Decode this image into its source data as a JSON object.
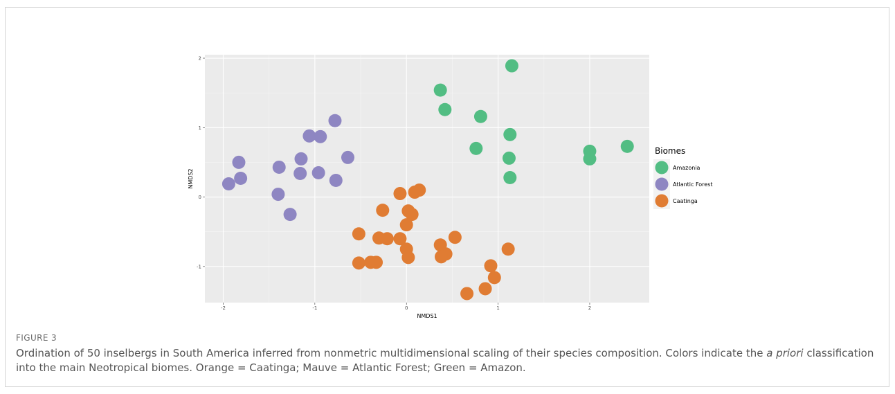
{
  "figure": {
    "label": "FIGURE 3",
    "caption_before_italic": "Ordination of 50 inselbergs in South America inferred from nonmetric multidimensional scaling of their species composition. Colors indicate the ",
    "caption_italic": "a priori",
    "caption_after_italic": " classification into the main Neotropical biomes. Orange = Caatinga; Mauve = Atlantic Forest; Green = Amazon."
  },
  "chart_data": {
    "type": "scatter",
    "xlabel": "NMDS1",
    "ylabel": "NMDS2",
    "xlim": [
      -2.2,
      2.65
    ],
    "ylim": [
      -1.52,
      2.05
    ],
    "xticks": [
      -2,
      -1,
      0,
      1,
      2
    ],
    "yticks": [
      -1,
      0,
      1,
      2
    ],
    "grid": true,
    "legend": {
      "title": "Biomes",
      "position": "right"
    },
    "series": [
      {
        "name": "Amazonia",
        "color": "#52bd83",
        "points": [
          [
            1.15,
            1.89
          ],
          [
            0.37,
            1.54
          ],
          [
            0.42,
            1.26
          ],
          [
            0.81,
            1.16
          ],
          [
            1.13,
            0.9
          ],
          [
            0.76,
            0.7
          ],
          [
            1.12,
            0.56
          ],
          [
            1.13,
            0.28
          ],
          [
            2.0,
            0.66
          ],
          [
            2.0,
            0.55
          ],
          [
            2.41,
            0.73
          ]
        ]
      },
      {
        "name": "Atlantic Forest",
        "color": "#8e86c2",
        "points": [
          [
            -0.78,
            1.1
          ],
          [
            -1.06,
            0.88
          ],
          [
            -0.94,
            0.87
          ],
          [
            -1.15,
            0.55
          ],
          [
            -1.83,
            0.5
          ],
          [
            -1.39,
            0.43
          ],
          [
            -1.81,
            0.27
          ],
          [
            -1.94,
            0.19
          ],
          [
            -1.16,
            0.34
          ],
          [
            -0.96,
            0.35
          ],
          [
            -0.77,
            0.24
          ],
          [
            -0.64,
            0.57
          ],
          [
            -1.4,
            0.04
          ],
          [
            -1.27,
            -0.25
          ]
        ]
      },
      {
        "name": "Caatinga",
        "color": "#e07c33",
        "points": [
          [
            -0.07,
            0.05
          ],
          [
            0.09,
            0.07
          ],
          [
            0.14,
            0.1
          ],
          [
            -0.26,
            -0.19
          ],
          [
            0.02,
            -0.2
          ],
          [
            0.06,
            -0.25
          ],
          [
            0.0,
            -0.4
          ],
          [
            -0.52,
            -0.53
          ],
          [
            -0.3,
            -0.59
          ],
          [
            -0.21,
            -0.6
          ],
          [
            -0.07,
            -0.6
          ],
          [
            0.53,
            -0.58
          ],
          [
            0.37,
            -0.69
          ],
          [
            0.0,
            -0.75
          ],
          [
            1.11,
            -0.75
          ],
          [
            0.43,
            -0.82
          ],
          [
            0.38,
            -0.86
          ],
          [
            0.02,
            -0.87
          ],
          [
            -0.52,
            -0.95
          ],
          [
            -0.39,
            -0.94
          ],
          [
            -0.33,
            -0.94
          ],
          [
            0.92,
            -0.99
          ],
          [
            0.96,
            -1.16
          ],
          [
            0.86,
            -1.32
          ],
          [
            0.66,
            -1.39
          ]
        ]
      }
    ]
  }
}
